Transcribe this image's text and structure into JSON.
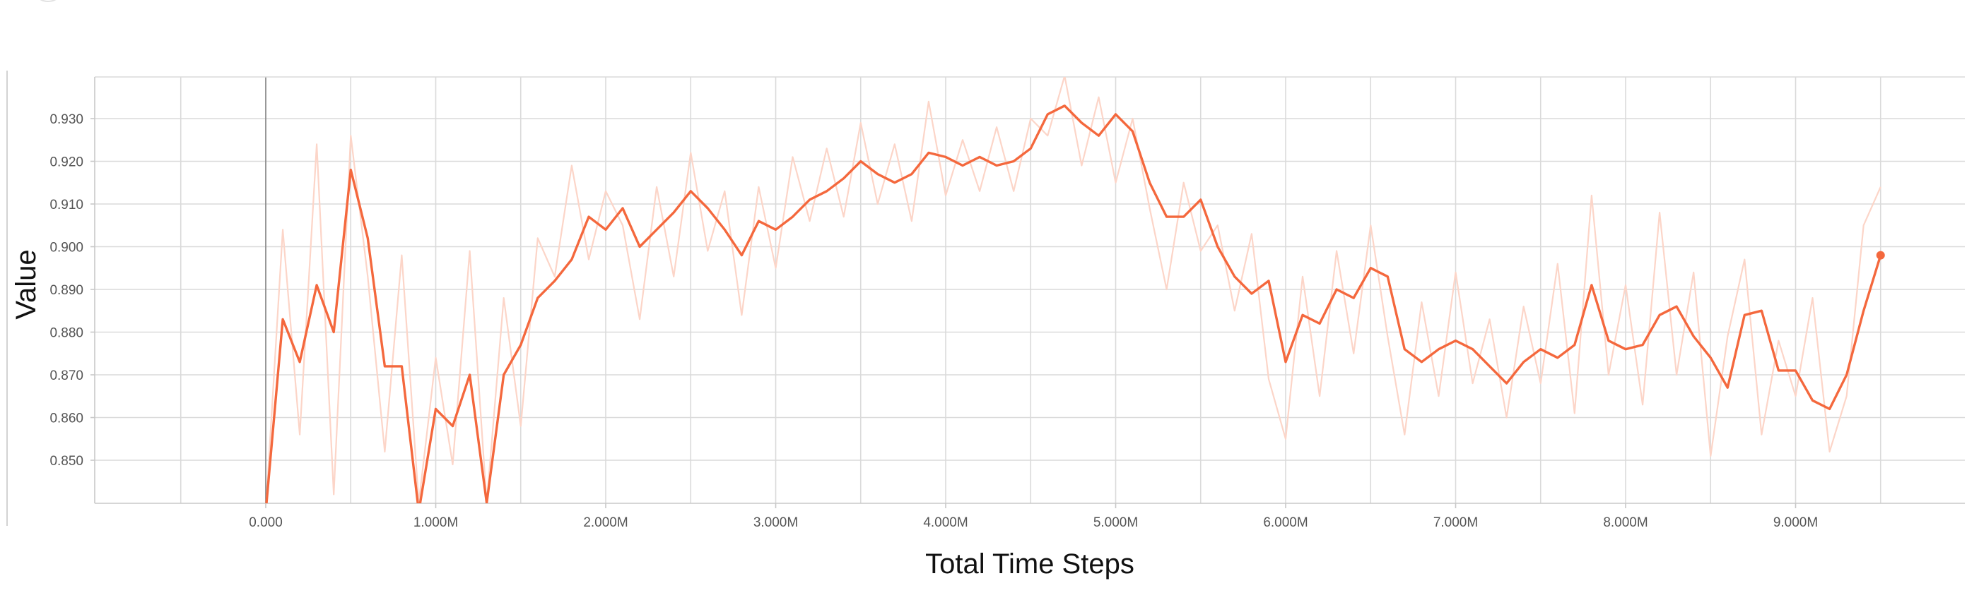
{
  "chart_data": {
    "type": "line",
    "title": "",
    "xlabel": "Total Time Steps",
    "ylabel": "Value",
    "xlim": [
      -1000000,
      10000000
    ],
    "ylim": [
      0.84,
      0.94
    ],
    "grid": true,
    "legend": "none",
    "x_ticks": [
      {
        "value": 0,
        "label": "0.000"
      },
      {
        "value": 1000000,
        "label": "1.000M"
      },
      {
        "value": 2000000,
        "label": "2.000M"
      },
      {
        "value": 3000000,
        "label": "3.000M"
      },
      {
        "value": 4000000,
        "label": "4.000M"
      },
      {
        "value": 5000000,
        "label": "5.000M"
      },
      {
        "value": 6000000,
        "label": "6.000M"
      },
      {
        "value": 7000000,
        "label": "7.000M"
      },
      {
        "value": 8000000,
        "label": "8.000M"
      },
      {
        "value": 9000000,
        "label": "9.000M"
      }
    ],
    "y_ticks": [
      {
        "value": 0.85,
        "label": "0.850"
      },
      {
        "value": 0.86,
        "label": "0.860"
      },
      {
        "value": 0.87,
        "label": "0.870"
      },
      {
        "value": 0.88,
        "label": "0.880"
      },
      {
        "value": 0.89,
        "label": "0.890"
      },
      {
        "value": 0.9,
        "label": "0.900"
      },
      {
        "value": 0.91,
        "label": "0.910"
      },
      {
        "value": 0.92,
        "label": "0.920"
      },
      {
        "value": 0.93,
        "label": "0.930"
      }
    ],
    "series": [
      {
        "role": "smoothed",
        "color": "#f4683d",
        "x": [
          0,
          100000,
          200000,
          300000,
          400000,
          500000,
          600000,
          700000,
          800000,
          900000,
          1000000,
          1100000,
          1200000,
          1300000,
          1400000,
          1500000,
          1600000,
          1700000,
          1800000,
          1900000,
          2000000,
          2100000,
          2200000,
          2300000,
          2400000,
          2500000,
          2600000,
          2700000,
          2800000,
          2900000,
          3000000,
          3100000,
          3200000,
          3300000,
          3400000,
          3500000,
          3600000,
          3700000,
          3800000,
          3900000,
          4000000,
          4100000,
          4200000,
          4300000,
          4400000,
          4500000,
          4600000,
          4700000,
          4800000,
          4900000,
          5000000,
          5100000,
          5200000,
          5300000,
          5400000,
          5500000,
          5600000,
          5700000,
          5800000,
          5900000,
          6000000,
          6100000,
          6200000,
          6300000,
          6400000,
          6500000,
          6600000,
          6700000,
          6800000,
          6900000,
          7000000,
          7100000,
          7200000,
          7300000,
          7400000,
          7500000,
          7600000,
          7700000,
          7800000,
          7900000,
          8000000,
          8100000,
          8200000,
          8300000,
          8400000,
          8500000,
          8600000,
          8700000,
          8800000,
          8900000,
          9000000,
          9100000,
          9200000,
          9300000,
          9400000,
          9500000
        ],
        "y": [
          0.838,
          0.883,
          0.873,
          0.891,
          0.88,
          0.918,
          0.902,
          0.872,
          0.872,
          0.838,
          0.862,
          0.858,
          0.87,
          0.84,
          0.87,
          0.877,
          0.888,
          0.892,
          0.897,
          0.907,
          0.904,
          0.909,
          0.9,
          0.904,
          0.908,
          0.913,
          0.909,
          0.904,
          0.898,
          0.906,
          0.904,
          0.907,
          0.911,
          0.913,
          0.916,
          0.92,
          0.917,
          0.915,
          0.917,
          0.922,
          0.921,
          0.919,
          0.921,
          0.919,
          0.92,
          0.923,
          0.931,
          0.933,
          0.929,
          0.926,
          0.931,
          0.927,
          0.915,
          0.907,
          0.907,
          0.911,
          0.9,
          0.893,
          0.889,
          0.892,
          0.873,
          0.884,
          0.882,
          0.89,
          0.888,
          0.895,
          0.893,
          0.876,
          0.873,
          0.876,
          0.878,
          0.876,
          0.872,
          0.868,
          0.873,
          0.876,
          0.874,
          0.877,
          0.891,
          0.878,
          0.876,
          0.877,
          0.884,
          0.886,
          0.879,
          0.874,
          0.867,
          0.884,
          0.885,
          0.871,
          0.871,
          0.864,
          0.862,
          0.87,
          0.885,
          0.898
        ]
      },
      {
        "role": "raw",
        "color": "#fcd5c8",
        "x": [
          0,
          100000,
          200000,
          300000,
          400000,
          500000,
          600000,
          700000,
          800000,
          900000,
          1000000,
          1100000,
          1200000,
          1300000,
          1400000,
          1500000,
          1600000,
          1700000,
          1800000,
          1900000,
          2000000,
          2100000,
          2200000,
          2300000,
          2400000,
          2500000,
          2600000,
          2700000,
          2800000,
          2900000,
          3000000,
          3100000,
          3200000,
          3300000,
          3400000,
          3500000,
          3600000,
          3700000,
          3800000,
          3900000,
          4000000,
          4100000,
          4200000,
          4300000,
          4400000,
          4500000,
          4600000,
          4700000,
          4800000,
          4900000,
          5000000,
          5100000,
          5200000,
          5300000,
          5400000,
          5500000,
          5600000,
          5700000,
          5800000,
          5900000,
          6000000,
          6100000,
          6200000,
          6300000,
          6400000,
          6500000,
          6600000,
          6700000,
          6800000,
          6900000,
          7000000,
          7100000,
          7200000,
          7300000,
          7400000,
          7500000,
          7600000,
          7700000,
          7800000,
          7900000,
          8000000,
          8100000,
          8200000,
          8300000,
          8400000,
          8500000,
          8600000,
          8700000,
          8800000,
          8900000,
          9000000,
          9100000,
          9200000,
          9300000,
          9400000,
          9500000
        ],
        "y": [
          0.838,
          0.904,
          0.856,
          0.924,
          0.842,
          0.926,
          0.893,
          0.852,
          0.898,
          0.84,
          0.874,
          0.849,
          0.899,
          0.84,
          0.888,
          0.858,
          0.902,
          0.893,
          0.919,
          0.897,
          0.913,
          0.905,
          0.883,
          0.914,
          0.893,
          0.922,
          0.899,
          0.913,
          0.884,
          0.914,
          0.895,
          0.921,
          0.906,
          0.923,
          0.907,
          0.929,
          0.91,
          0.924,
          0.906,
          0.934,
          0.912,
          0.925,
          0.913,
          0.928,
          0.913,
          0.93,
          0.926,
          0.94,
          0.919,
          0.935,
          0.915,
          0.93,
          0.909,
          0.89,
          0.915,
          0.899,
          0.905,
          0.885,
          0.903,
          0.869,
          0.855,
          0.893,
          0.865,
          0.899,
          0.875,
          0.905,
          0.879,
          0.856,
          0.887,
          0.865,
          0.894,
          0.868,
          0.883,
          0.86,
          0.886,
          0.868,
          0.896,
          0.861,
          0.912,
          0.87,
          0.891,
          0.863,
          0.908,
          0.87,
          0.894,
          0.851,
          0.879,
          0.897,
          0.856,
          0.878,
          0.865,
          0.888,
          0.852,
          0.865,
          0.905,
          0.914
        ]
      }
    ],
    "endpoint": {
      "x": 9500000,
      "y": 0.898
    }
  }
}
